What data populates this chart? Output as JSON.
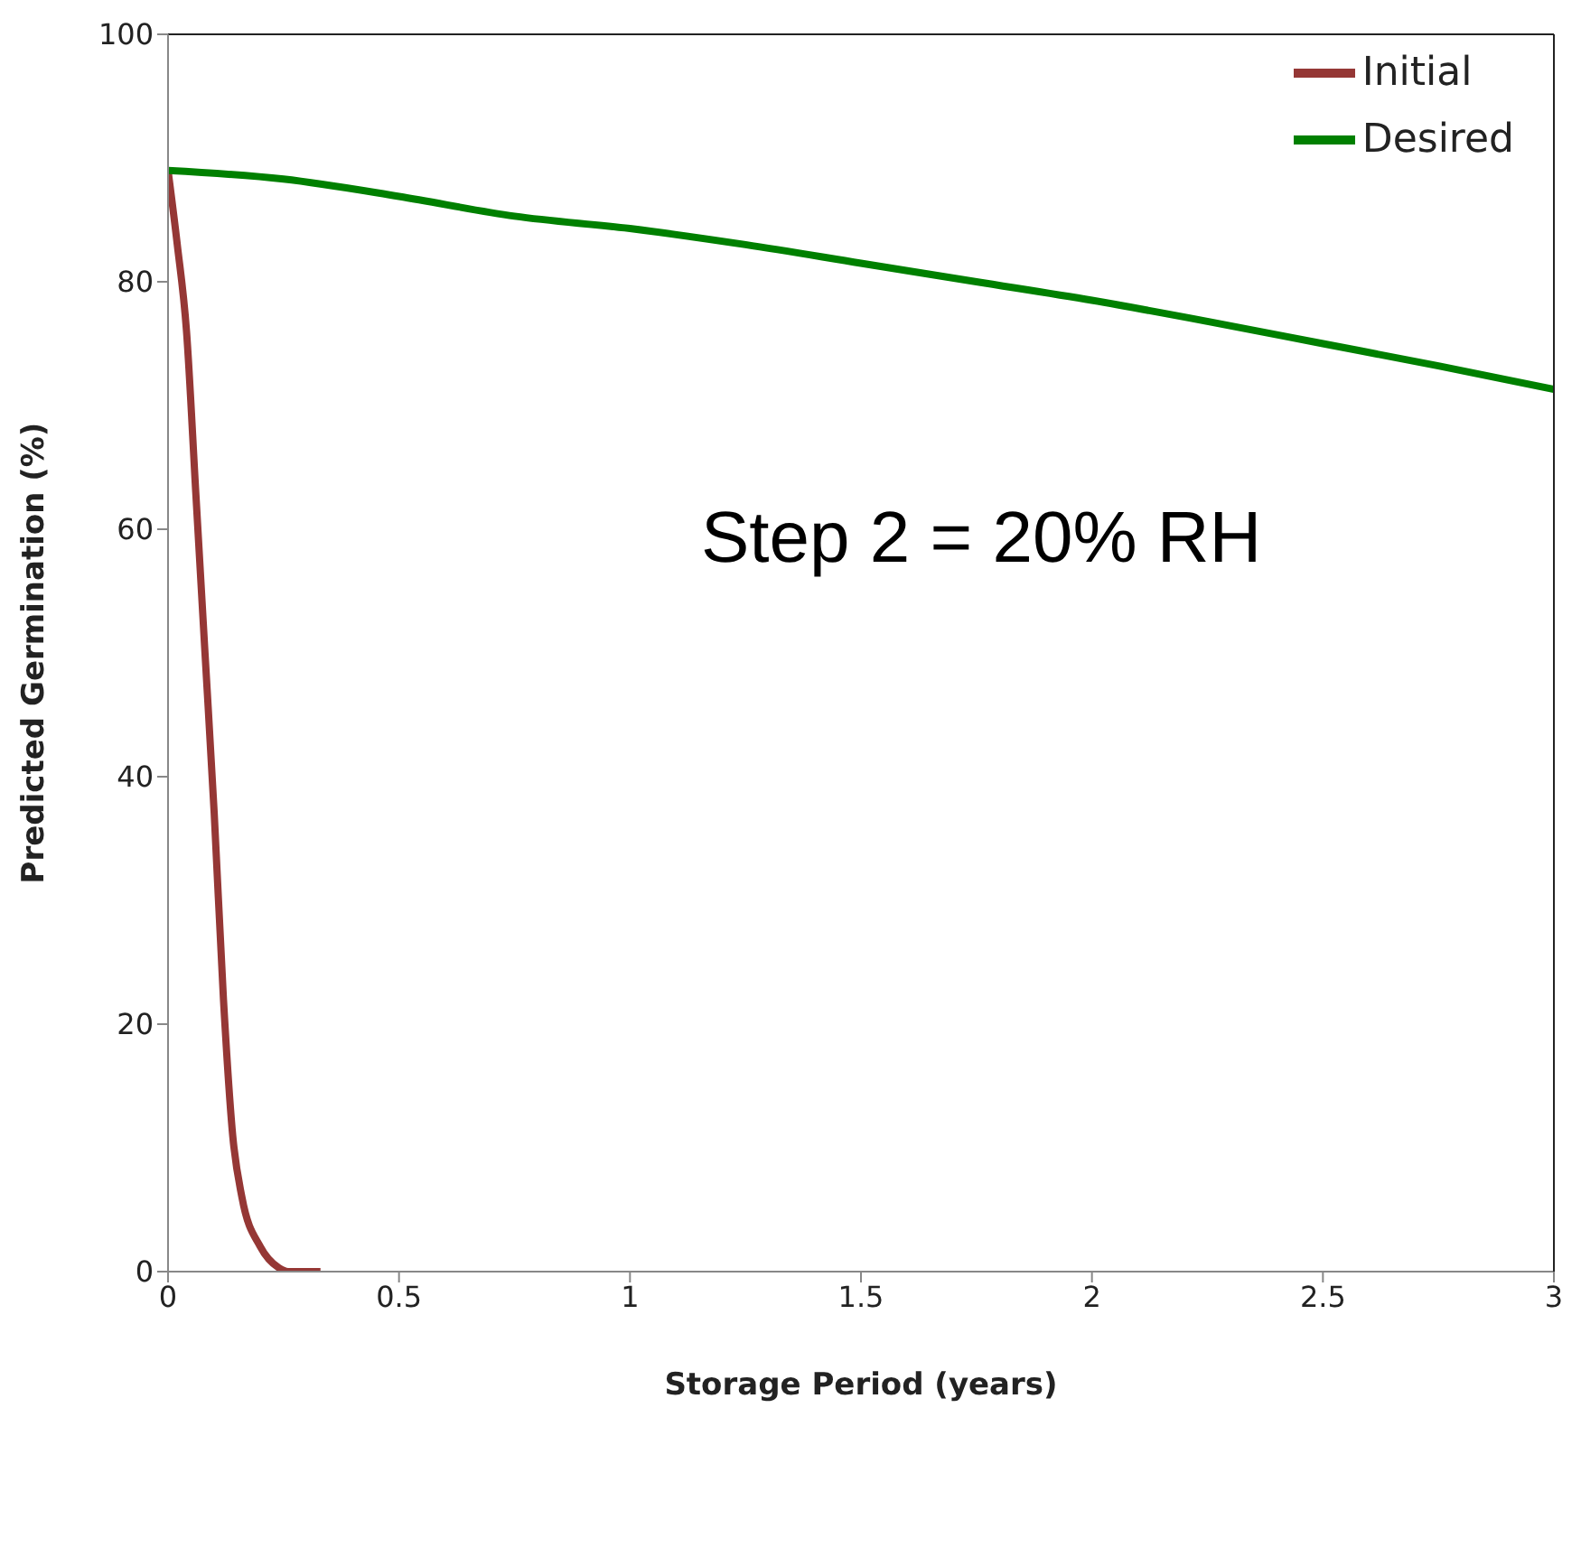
{
  "chart_data": {
    "type": "line",
    "xlabel": "Storage Period (years)",
    "ylabel": "Predicted Germination (%)",
    "annotations": [
      "Step 2 = 20% RH"
    ],
    "xlim": [
      0,
      3
    ],
    "xticks": [
      0,
      0.5,
      1,
      1.5,
      2,
      2.5,
      3
    ],
    "ylim": [
      0,
      100
    ],
    "yticks": [
      0,
      20,
      40,
      60,
      80,
      100
    ],
    "grid": false,
    "legend": "top right",
    "marker": "none",
    "line_style": "solid",
    "series": [
      {
        "name": "Initial",
        "color": "#953735",
        "x": [
          0,
          0.02,
          0.04,
          0.06,
          0.08,
          0.1,
          0.12,
          0.14,
          0.16,
          0.2,
          0.24,
          0.26,
          0.33
        ],
        "values": [
          89,
          83,
          76,
          63,
          50,
          37,
          22,
          11,
          6,
          2,
          0.3,
          0,
          0
        ]
      },
      {
        "name": "Desired",
        "color": "#008000",
        "x": [
          0,
          0.25,
          0.5,
          0.75,
          1,
          1.25,
          1.5,
          1.75,
          2,
          2.25,
          2.5,
          2.75,
          3
        ],
        "values": [
          89,
          88.3,
          86.9,
          85.3,
          84.3,
          83,
          81.5,
          80,
          78.5,
          76.8,
          75,
          73.2,
          71.3
        ]
      }
    ]
  }
}
